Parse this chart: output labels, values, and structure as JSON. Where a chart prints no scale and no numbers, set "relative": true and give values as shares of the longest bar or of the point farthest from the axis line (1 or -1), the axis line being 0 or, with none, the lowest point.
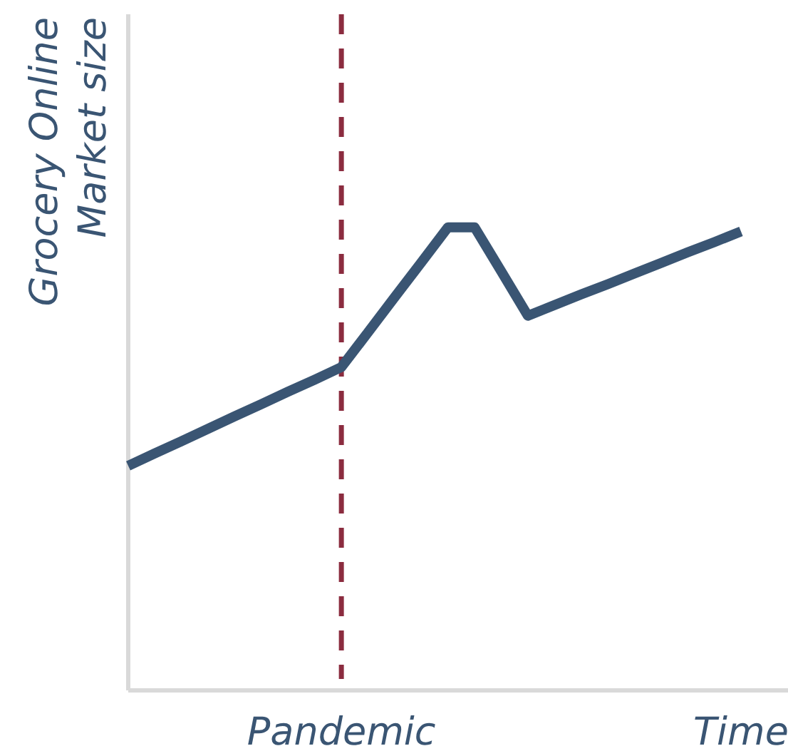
{
  "chart_data": {
    "type": "line",
    "relative": true,
    "ylabel": "Grocery Online\nMarket size",
    "categories": [
      null,
      null,
      null,
      null,
      null,
      null,
      null,
      null,
      "Pandemic",
      null,
      null,
      null,
      null,
      null,
      null,
      null,
      null,
      null,
      null,
      null,
      null,
      null,
      null,
      "Time"
    ],
    "tick_labels": "x",
    "marker": "none",
    "line_style": "solid",
    "series": [
      {
        "color": "#3a5573",
        "values": [
          0.485,
          0.512,
          0.538,
          0.565,
          0.592,
          0.618,
          0.645,
          0.671,
          0.698,
          0.773,
          0.849,
          0.924,
          1,
          1,
          0.905,
          0.809,
          0.832,
          0.855,
          0.877,
          0.9,
          0.923,
          0.946,
          0.968,
          0.991
        ]
      }
    ],
    "ref_lines": [
      {
        "axis": "x",
        "value": "Pandemic",
        "color": "#8b2c3f",
        "line_style": "dashed"
      }
    ]
  }
}
